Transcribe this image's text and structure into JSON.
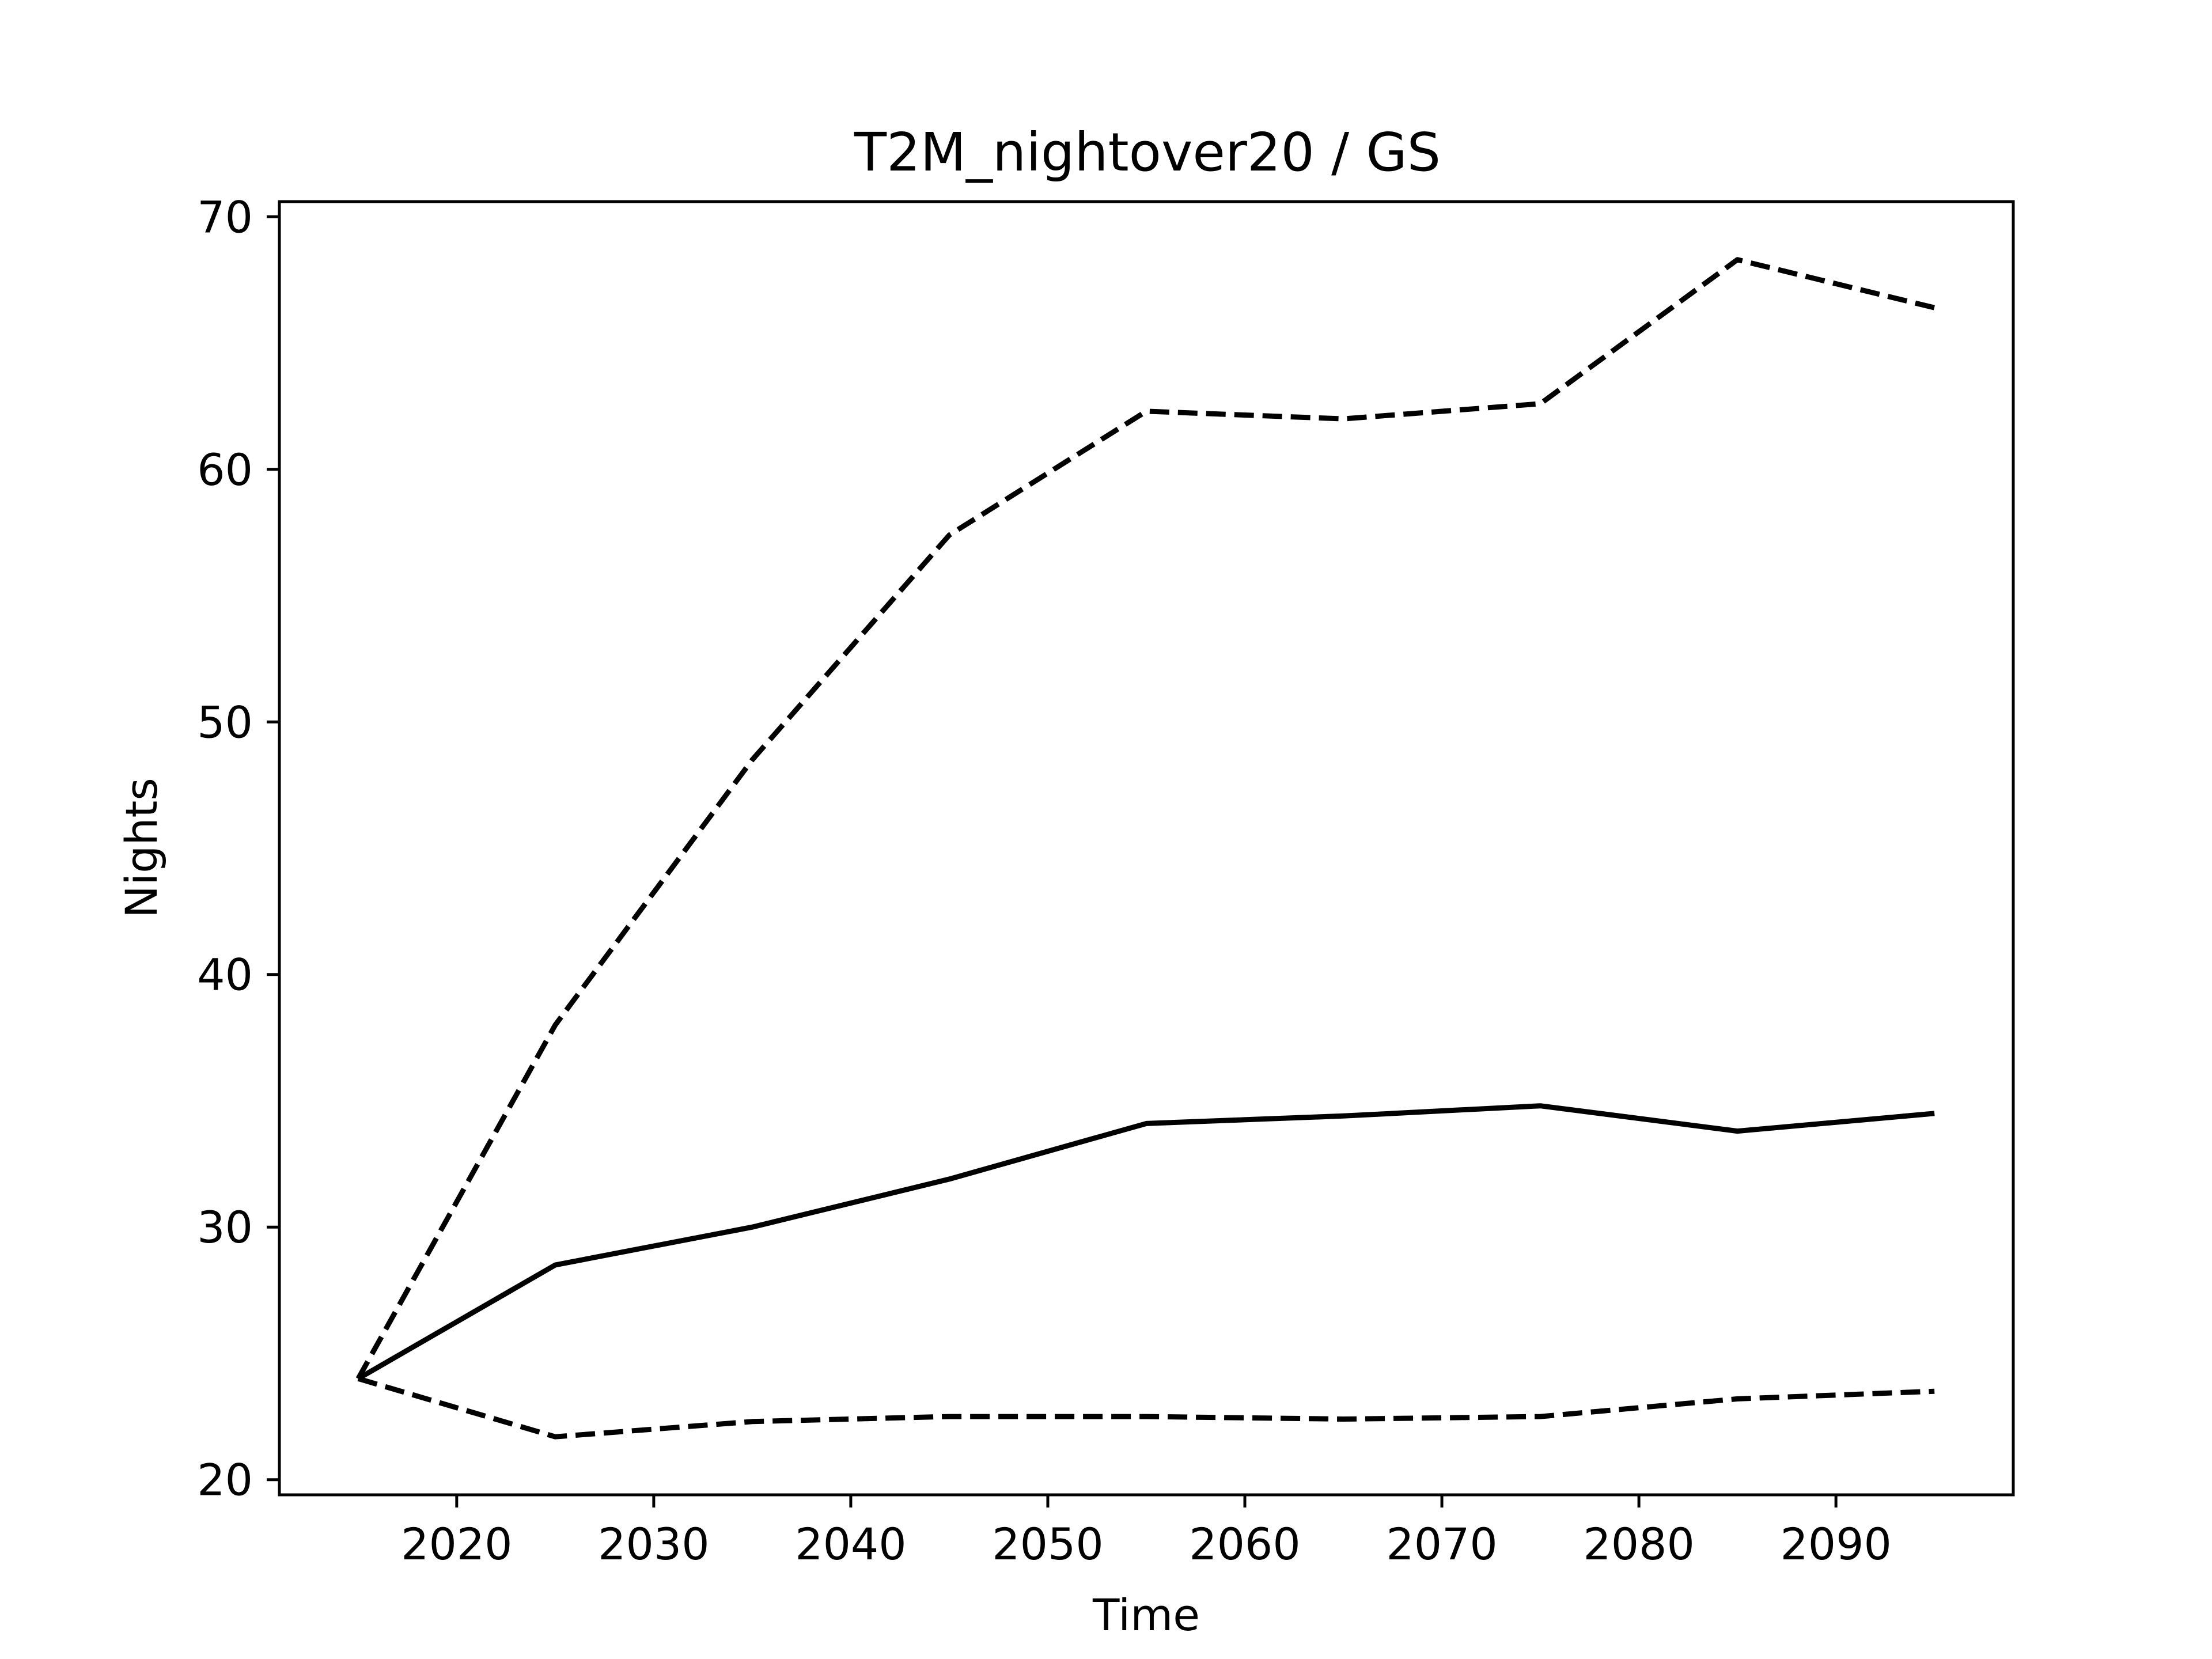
{
  "chart_data": {
    "type": "line",
    "title": "T2M_nightover20 / GS",
    "xlabel": "Time",
    "ylabel": "Nights",
    "xlim": [
      2011,
      2099
    ],
    "ylim": [
      19.4,
      70.6
    ],
    "xticks": [
      2020,
      2030,
      2040,
      2050,
      2060,
      2070,
      2080,
      2090
    ],
    "yticks": [
      20,
      30,
      40,
      50,
      60,
      70
    ],
    "grid": false,
    "legend": "none",
    "x": [
      2015,
      2025,
      2035,
      2045,
      2055,
      2065,
      2075,
      2085,
      2095
    ],
    "series": [
      {
        "style": "solid",
        "color": "#000000",
        "values": [
          24.0,
          28.5,
          30.0,
          31.9,
          34.1,
          34.4,
          34.8,
          33.8,
          34.5
        ]
      },
      {
        "style": "dashed",
        "color": "#000000",
        "values": [
          24.0,
          38.0,
          48.5,
          57.4,
          62.3,
          62.0,
          62.6,
          68.3,
          66.4
        ]
      },
      {
        "style": "dashed",
        "color": "#000000",
        "values": [
          24.0,
          21.7,
          22.3,
          22.5,
          22.5,
          22.4,
          22.5,
          23.2,
          23.5
        ]
      }
    ]
  }
}
